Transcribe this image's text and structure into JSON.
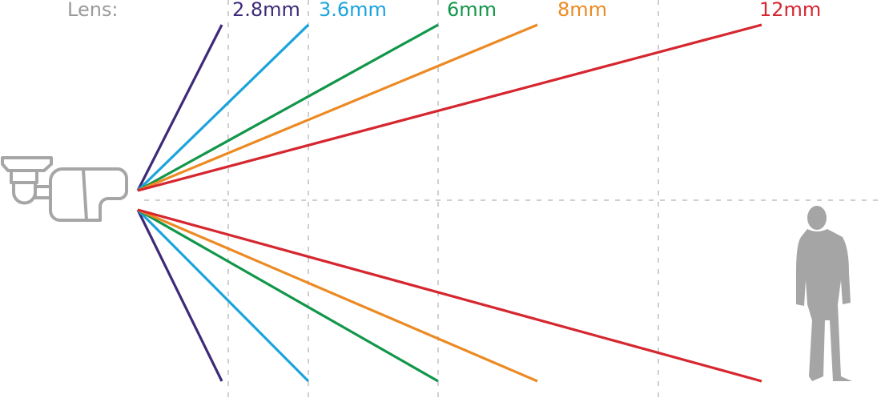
{
  "title_label": "Lens:",
  "lenses": [
    {
      "label": "2.8mm",
      "color": "#3d2a78"
    },
    {
      "label": "3.6mm",
      "color": "#1ba3dc"
    },
    {
      "label": "6mm",
      "color": "#12964a"
    },
    {
      "label": "8mm",
      "color": "#ec8a23"
    },
    {
      "label": "12mm",
      "color": "#d6262f"
    }
  ],
  "icons": [
    "bullet-camera-icon",
    "person-silhouette-icon"
  ],
  "colors": {
    "label_gray": "#9a9a9a",
    "guide_gray": "#cccccc",
    "icon_gray": "#a6a6a6"
  }
}
